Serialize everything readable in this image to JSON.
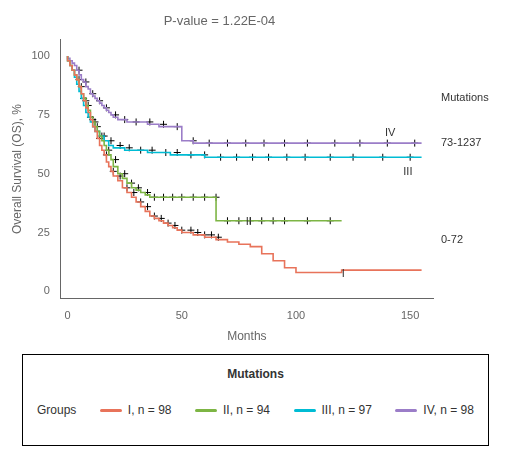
{
  "chart_data": {
    "type": "step",
    "title": "P-value = 1.22E-04",
    "xlabel": "Months",
    "ylabel": "Overall Survival (OS), %",
    "xlim": [
      -3,
      160
    ],
    "ylim": [
      -3,
      107
    ],
    "xticks": [
      0,
      50,
      100,
      150
    ],
    "yticks": [
      0,
      25,
      50,
      75,
      100
    ],
    "grid": false,
    "legend": "bottom",
    "legend_title": "Mutations",
    "legend_group_label": "Groups",
    "series": [
      {
        "name": "I, n = 98",
        "color": "#E8735A",
        "x": [
          0,
          1,
          2,
          3,
          4,
          5,
          6,
          7,
          8,
          9,
          10,
          11,
          12,
          13,
          14,
          15,
          16,
          17,
          18,
          19,
          20,
          22,
          24,
          26,
          28,
          30,
          32,
          34,
          36,
          38,
          40,
          42,
          44,
          46,
          48,
          50,
          55,
          60,
          65,
          70,
          75,
          80,
          85,
          90,
          95,
          100,
          110,
          120,
          135,
          155
        ],
        "values": [
          100,
          98,
          96,
          94,
          92,
          90,
          87,
          84,
          81,
          78,
          76,
          73,
          70,
          68,
          65,
          62,
          60,
          58,
          55,
          53,
          51,
          49,
          47,
          44,
          42,
          40,
          38,
          36,
          34,
          32,
          31,
          30,
          29,
          28,
          27,
          26,
          25,
          24,
          23,
          22,
          21,
          20,
          19,
          16,
          13,
          10,
          8,
          8,
          9,
          9
        ],
        "censor_x": [
          5,
          8,
          11,
          14,
          17,
          20,
          23,
          26,
          29,
          32,
          35,
          38,
          41,
          44,
          47,
          50,
          54,
          57,
          60,
          63,
          66
        ],
        "censor_y": [
          90,
          81,
          73,
          65,
          58,
          51,
          49,
          44,
          42,
          38,
          36,
          32,
          31,
          29,
          28,
          26,
          26,
          25,
          24,
          24,
          23
        ],
        "censor_color": "#000000",
        "censor_marker": "cross"
      },
      {
        "name": "II, n = 94",
        "color": "#7DB544",
        "x": [
          0,
          1,
          2,
          3,
          4,
          5,
          6,
          7,
          8,
          9,
          10,
          11,
          12,
          13,
          14,
          15,
          16,
          17,
          18,
          19,
          20,
          22,
          24,
          26,
          28,
          30,
          32,
          34,
          36,
          38,
          40,
          45,
          50,
          55,
          60,
          65,
          70,
          75,
          80,
          85,
          90,
          95,
          100,
          110,
          120
        ],
        "values": [
          100,
          98,
          96,
          94,
          92,
          90,
          87,
          84,
          82,
          79,
          77,
          74,
          72,
          70,
          68,
          66,
          64,
          62,
          60,
          58,
          56,
          53,
          50,
          48,
          46,
          44,
          43,
          42,
          41,
          40,
          40,
          40,
          40,
          40,
          40,
          40,
          30,
          30,
          30,
          30,
          30,
          30,
          30,
          30,
          30
        ],
        "censor_x": [
          6,
          9,
          12,
          15,
          18,
          21,
          25,
          28,
          31,
          35,
          38,
          42,
          46,
          50,
          55,
          60,
          65,
          70,
          75,
          80,
          85,
          90,
          95,
          105,
          115
        ],
        "censor_y": [
          87,
          79,
          72,
          66,
          60,
          56,
          50,
          46,
          44,
          42,
          40,
          40,
          40,
          40,
          40,
          40,
          40,
          30,
          30,
          30,
          30,
          30,
          30,
          30,
          30
        ],
        "censor_color": "#000000",
        "censor_marker": "cross"
      },
      {
        "name": "III, n = 97",
        "color": "#00BCD4",
        "x": [
          0,
          1,
          2,
          3,
          4,
          5,
          6,
          7,
          8,
          9,
          10,
          11,
          12,
          14,
          16,
          18,
          20,
          25,
          30,
          35,
          40,
          45,
          50,
          55,
          60,
          65,
          70,
          75,
          80,
          90,
          100,
          110,
          120,
          130,
          140,
          155
        ],
        "values": [
          100,
          98,
          96,
          94,
          91,
          88,
          85,
          82,
          79,
          76,
          74,
          72,
          70,
          68,
          66,
          64,
          62,
          61,
          60,
          60,
          59,
          59,
          58,
          58,
          58,
          57,
          57,
          57,
          57,
          57,
          57,
          57,
          57,
          57,
          57,
          57
        ],
        "censor_x": [
          7,
          10,
          13,
          16,
          19,
          23,
          27,
          32,
          37,
          43,
          48,
          54,
          60,
          67,
          74,
          81,
          88,
          96,
          104,
          115,
          125,
          138,
          150
        ],
        "censor_y": [
          82,
          74,
          70,
          66,
          64,
          62,
          61,
          60,
          60,
          59,
          59,
          58,
          58,
          57,
          57,
          57,
          57,
          57,
          57,
          57,
          57,
          57,
          57
        ],
        "censor_color": "#000000",
        "censor_marker": "cross"
      },
      {
        "name": "IV, n = 98",
        "color": "#9B7DC8",
        "x": [
          0,
          1,
          2,
          3,
          4,
          5,
          6,
          7,
          8,
          9,
          10,
          11,
          12,
          13,
          14,
          15,
          16,
          17,
          18,
          19,
          20,
          22,
          24,
          26,
          28,
          30,
          35,
          40,
          45,
          50,
          55,
          60,
          65,
          70,
          75,
          80,
          90,
          100,
          110,
          120,
          130,
          140,
          150,
          155
        ],
        "values": [
          100,
          99,
          98,
          97,
          96,
          94,
          92,
          90,
          89,
          87,
          86,
          84,
          83,
          82,
          81,
          80,
          79,
          78,
          77,
          76,
          75,
          74,
          73,
          73,
          72,
          72,
          72,
          71,
          70,
          70,
          64,
          63,
          63,
          63,
          63,
          63,
          63,
          63,
          63,
          63,
          63,
          63,
          63,
          63
        ],
        "censor_x": [
          5,
          8,
          11,
          14,
          17,
          21,
          25,
          30,
          36,
          42,
          48,
          55,
          62,
          70,
          78,
          86,
          95,
          105,
          117,
          128,
          140,
          152
        ],
        "censor_y": [
          94,
          89,
          84,
          81,
          78,
          75,
          73,
          72,
          72,
          71,
          70,
          64,
          63,
          63,
          63,
          63,
          63,
          63,
          63,
          63,
          63,
          63
        ],
        "censor_color": "#000000",
        "censor_marker": "cross"
      }
    ],
    "annotations": [
      {
        "text": "I",
        "x": 120,
        "y": 5,
        "align": "bottom"
      },
      {
        "text": "II",
        "x": 78,
        "y": 27,
        "align": "bottom"
      },
      {
        "text": "III",
        "x": 147,
        "y": 53,
        "align": "top"
      },
      {
        "text": "IV",
        "x": 139,
        "y": 65,
        "align": "bottom"
      }
    ],
    "side_labels": [
      {
        "text": "Mutations",
        "y": 82
      },
      {
        "text": "73-1237",
        "y": 63
      },
      {
        "text": "0-72",
        "y": 22
      }
    ]
  }
}
